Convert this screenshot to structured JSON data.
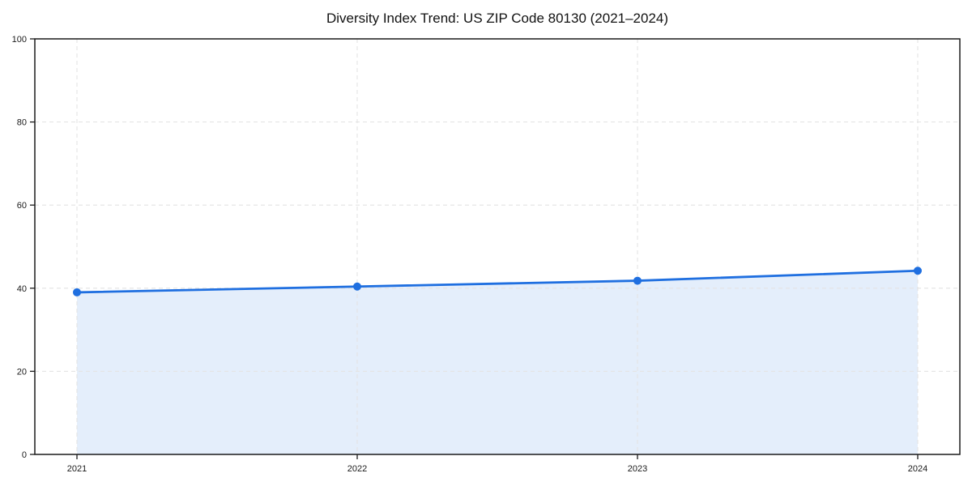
{
  "page": {
    "background": "#ffffff"
  },
  "chart_data": {
    "type": "area",
    "title": "Diversity Index Trend: US ZIP Code 80130 (2021–2024)",
    "x": [
      "2021",
      "2022",
      "2023",
      "2024"
    ],
    "series": [
      {
        "name": "Diversity Index",
        "values": [
          39.0,
          40.4,
          41.8,
          44.2
        ]
      }
    ],
    "xlabel": "",
    "ylabel": "",
    "ylim": [
      0,
      100
    ],
    "yticks": [
      0,
      20,
      40,
      60,
      80,
      100
    ],
    "grid": true,
    "grid_style": "dashed",
    "legend": "none",
    "line_color": "#1f6fe0",
    "fill_color": "#e4eefb",
    "grid_color": "#e4e4e4",
    "axis_color": "#1a1a1a",
    "text_color": "#1a1a1a"
  }
}
